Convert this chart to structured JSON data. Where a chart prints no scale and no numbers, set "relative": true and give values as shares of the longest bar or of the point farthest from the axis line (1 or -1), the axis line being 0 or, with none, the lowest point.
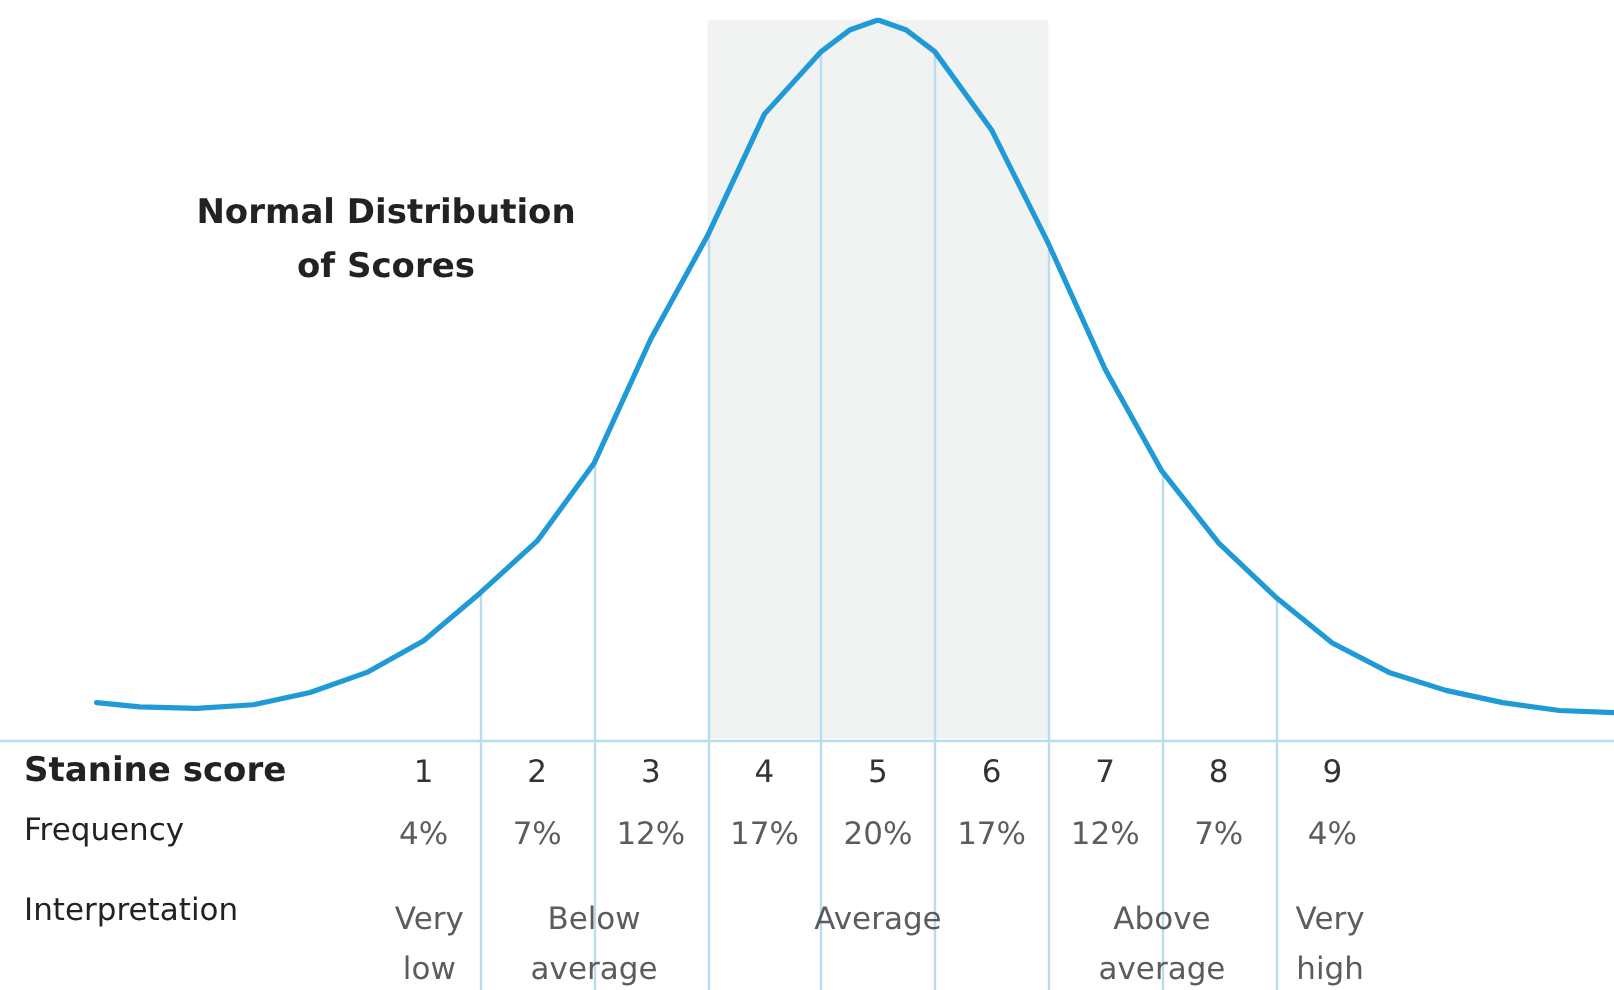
{
  "chart_data": {
    "type": "line",
    "title": "Normal Distribution\nof Scores",
    "relative": true,
    "xlabel": "Stanine score",
    "x": [
      -1.88,
      -1.5,
      -1,
      -0.5,
      0,
      0.5,
      1,
      1.5,
      2,
      2.5,
      3,
      3.5,
      4,
      4.5,
      4.75,
      5,
      5.25,
      5.5,
      6,
      6.5,
      7,
      7.5,
      8,
      8.5,
      9,
      9.5,
      10,
      10.5,
      11,
      11.48
    ],
    "series": [
      {
        "color": "#1f9ad6",
        "values": [
          0.05,
          0.044,
          0.042,
          0.047,
          0.064,
          0.092,
          0.136,
          0.203,
          0.275,
          0.383,
          0.556,
          0.7,
          0.869,
          0.956,
          0.986,
          1,
          0.986,
          0.956,
          0.847,
          0.689,
          0.514,
          0.372,
          0.272,
          0.197,
          0.133,
          0.092,
          0.067,
          0.05,
          0.039,
          0.036
        ]
      }
    ],
    "xlim": [
      -2.73,
      11.48
    ],
    "xticks": [
      1,
      2,
      3,
      4,
      5,
      6,
      7,
      8,
      9
    ],
    "tick_labels": "x",
    "grid": false,
    "marker": "none",
    "line_style": "solid",
    "ref_lines": [
      {
        "axis": "x",
        "value": 1.5,
        "color": "#b9dcef"
      },
      {
        "axis": "x",
        "value": 2.5,
        "color": "#b9dcef"
      },
      {
        "axis": "x",
        "value": 3.5,
        "color": "#b9dcef"
      },
      {
        "axis": "x",
        "value": 4.5,
        "color": "#b9dcef"
      },
      {
        "axis": "x",
        "value": 5.5,
        "color": "#b9dcef"
      },
      {
        "axis": "x",
        "value": 6.5,
        "color": "#b9dcef"
      },
      {
        "axis": "x",
        "value": 7.5,
        "color": "#b9dcef"
      },
      {
        "axis": "x",
        "value": 8.5,
        "color": "#b9dcef"
      }
    ],
    "bands": [
      {
        "axis": "x",
        "from": 3.5,
        "to": 6.5,
        "color": "#f1f3f2"
      }
    ],
    "annotations": [
      "Frequency",
      "4%",
      "7%",
      "12%",
      "17%",
      "20%",
      "17%",
      "12%",
      "7%",
      "4%",
      "Interpretation",
      "Very\nlow",
      "Below\naverage",
      "Average",
      "Above\naverage",
      "Very\nhigh"
    ]
  }
}
